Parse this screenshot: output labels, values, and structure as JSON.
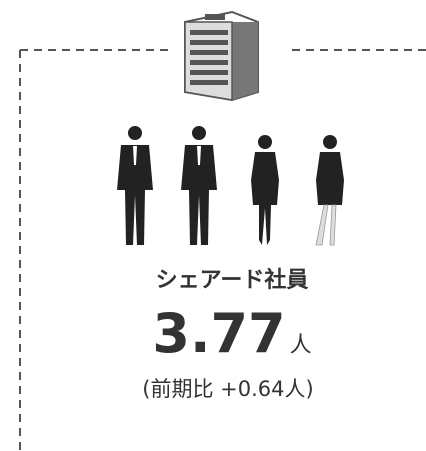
{
  "label": "シェアード社員",
  "value": 3.77,
  "unit": "人",
  "change": "(前期比 +0.64人)"
}
